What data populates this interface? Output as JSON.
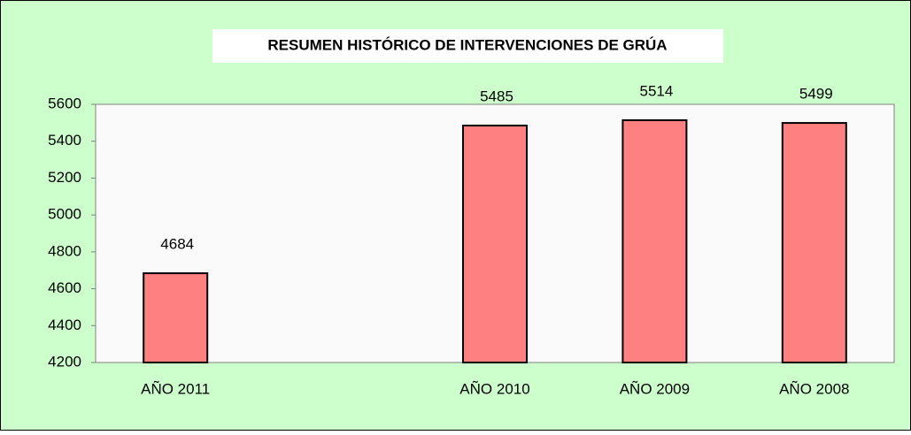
{
  "chart_data": {
    "type": "bar",
    "title": "RESUMEN HISTÓRICO DE INTERVENCIONES DE GRÚA",
    "categories": [
      "AÑO 2011",
      null,
      "AÑO 2010",
      "AÑO 2009",
      "AÑO 2008"
    ],
    "values": [
      4684,
      null,
      5485,
      5514,
      5499
    ],
    "color": "#ff8080",
    "ylim": [
      4200,
      5600
    ],
    "yticks": [
      4200,
      4400,
      4600,
      4800,
      5000,
      5200,
      5400,
      5600
    ],
    "grid": false
  }
}
